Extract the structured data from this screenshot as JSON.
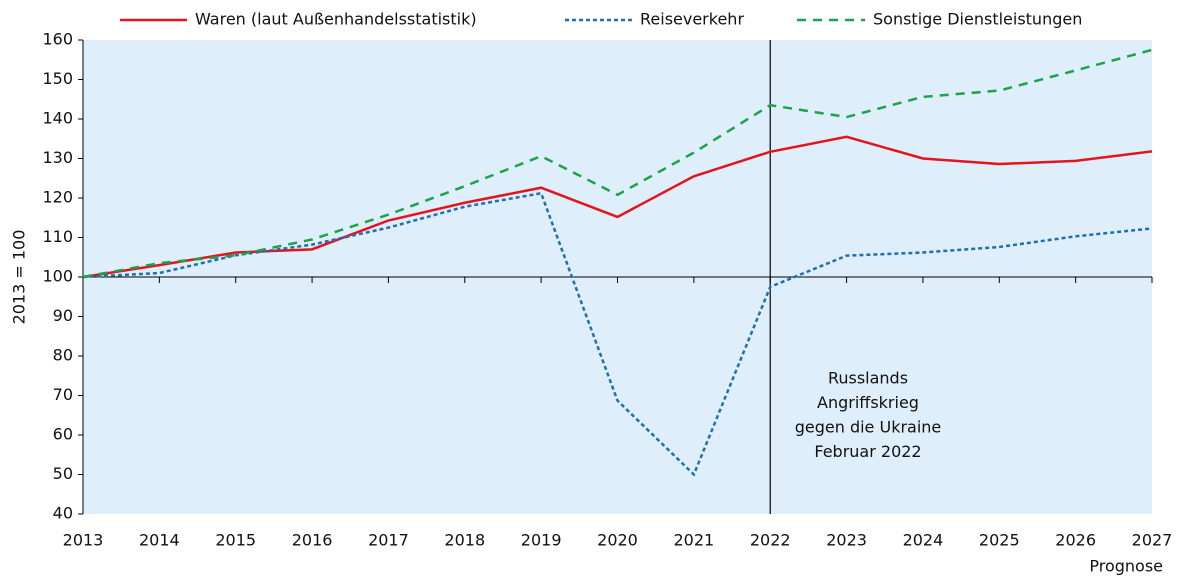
{
  "chart_data": {
    "type": "line",
    "y_label": "2013 = 100",
    "x_note": "Prognose",
    "x": [
      2013,
      2014,
      2015,
      2016,
      2017,
      2018,
      2019,
      2020,
      2021,
      2022,
      2023,
      2024,
      2025,
      2026,
      2027
    ],
    "xlim": [
      2013,
      2027
    ],
    "xticks": [
      2013,
      2014,
      2015,
      2016,
      2017,
      2018,
      2019,
      2020,
      2021,
      2022,
      2023,
      2024,
      2025,
      2026,
      2027
    ],
    "ylim": [
      40,
      160
    ],
    "yticks": [
      40,
      50,
      60,
      70,
      80,
      90,
      100,
      110,
      120,
      130,
      140,
      150,
      160
    ],
    "baseline": 100,
    "vline_x": 2022,
    "annotation": [
      "Russlands",
      "Angriffskrieg",
      "gegen die Ukraine",
      "Februar 2022"
    ],
    "series": [
      {
        "name": "Waren (laut Außenhandelsstatistik)",
        "color": "#e3141c",
        "style": "solid",
        "values": [
          100,
          103,
          106.2,
          107,
          114.3,
          118.8,
          122.6,
          115.2,
          125.5,
          131.7,
          135.5,
          130,
          128.6,
          129.4,
          131.8
        ]
      },
      {
        "name": "Reiseverkehr",
        "color": "#1f6fb2",
        "style": "dotted",
        "values": [
          100,
          101,
          105.5,
          108.2,
          112.5,
          117.8,
          121.2,
          68.7,
          50,
          97.5,
          105.4,
          106.2,
          107.6,
          110.3,
          112.3
        ]
      },
      {
        "name": "Sonstige Dienstleistungen",
        "color": "#1aa34a",
        "style": "dashed",
        "values": [
          100,
          103.5,
          105.5,
          109.5,
          115.8,
          123,
          130.6,
          120.8,
          131.5,
          143.5,
          140.5,
          145.6,
          147.2,
          152.3,
          157.5
        ]
      }
    ]
  }
}
